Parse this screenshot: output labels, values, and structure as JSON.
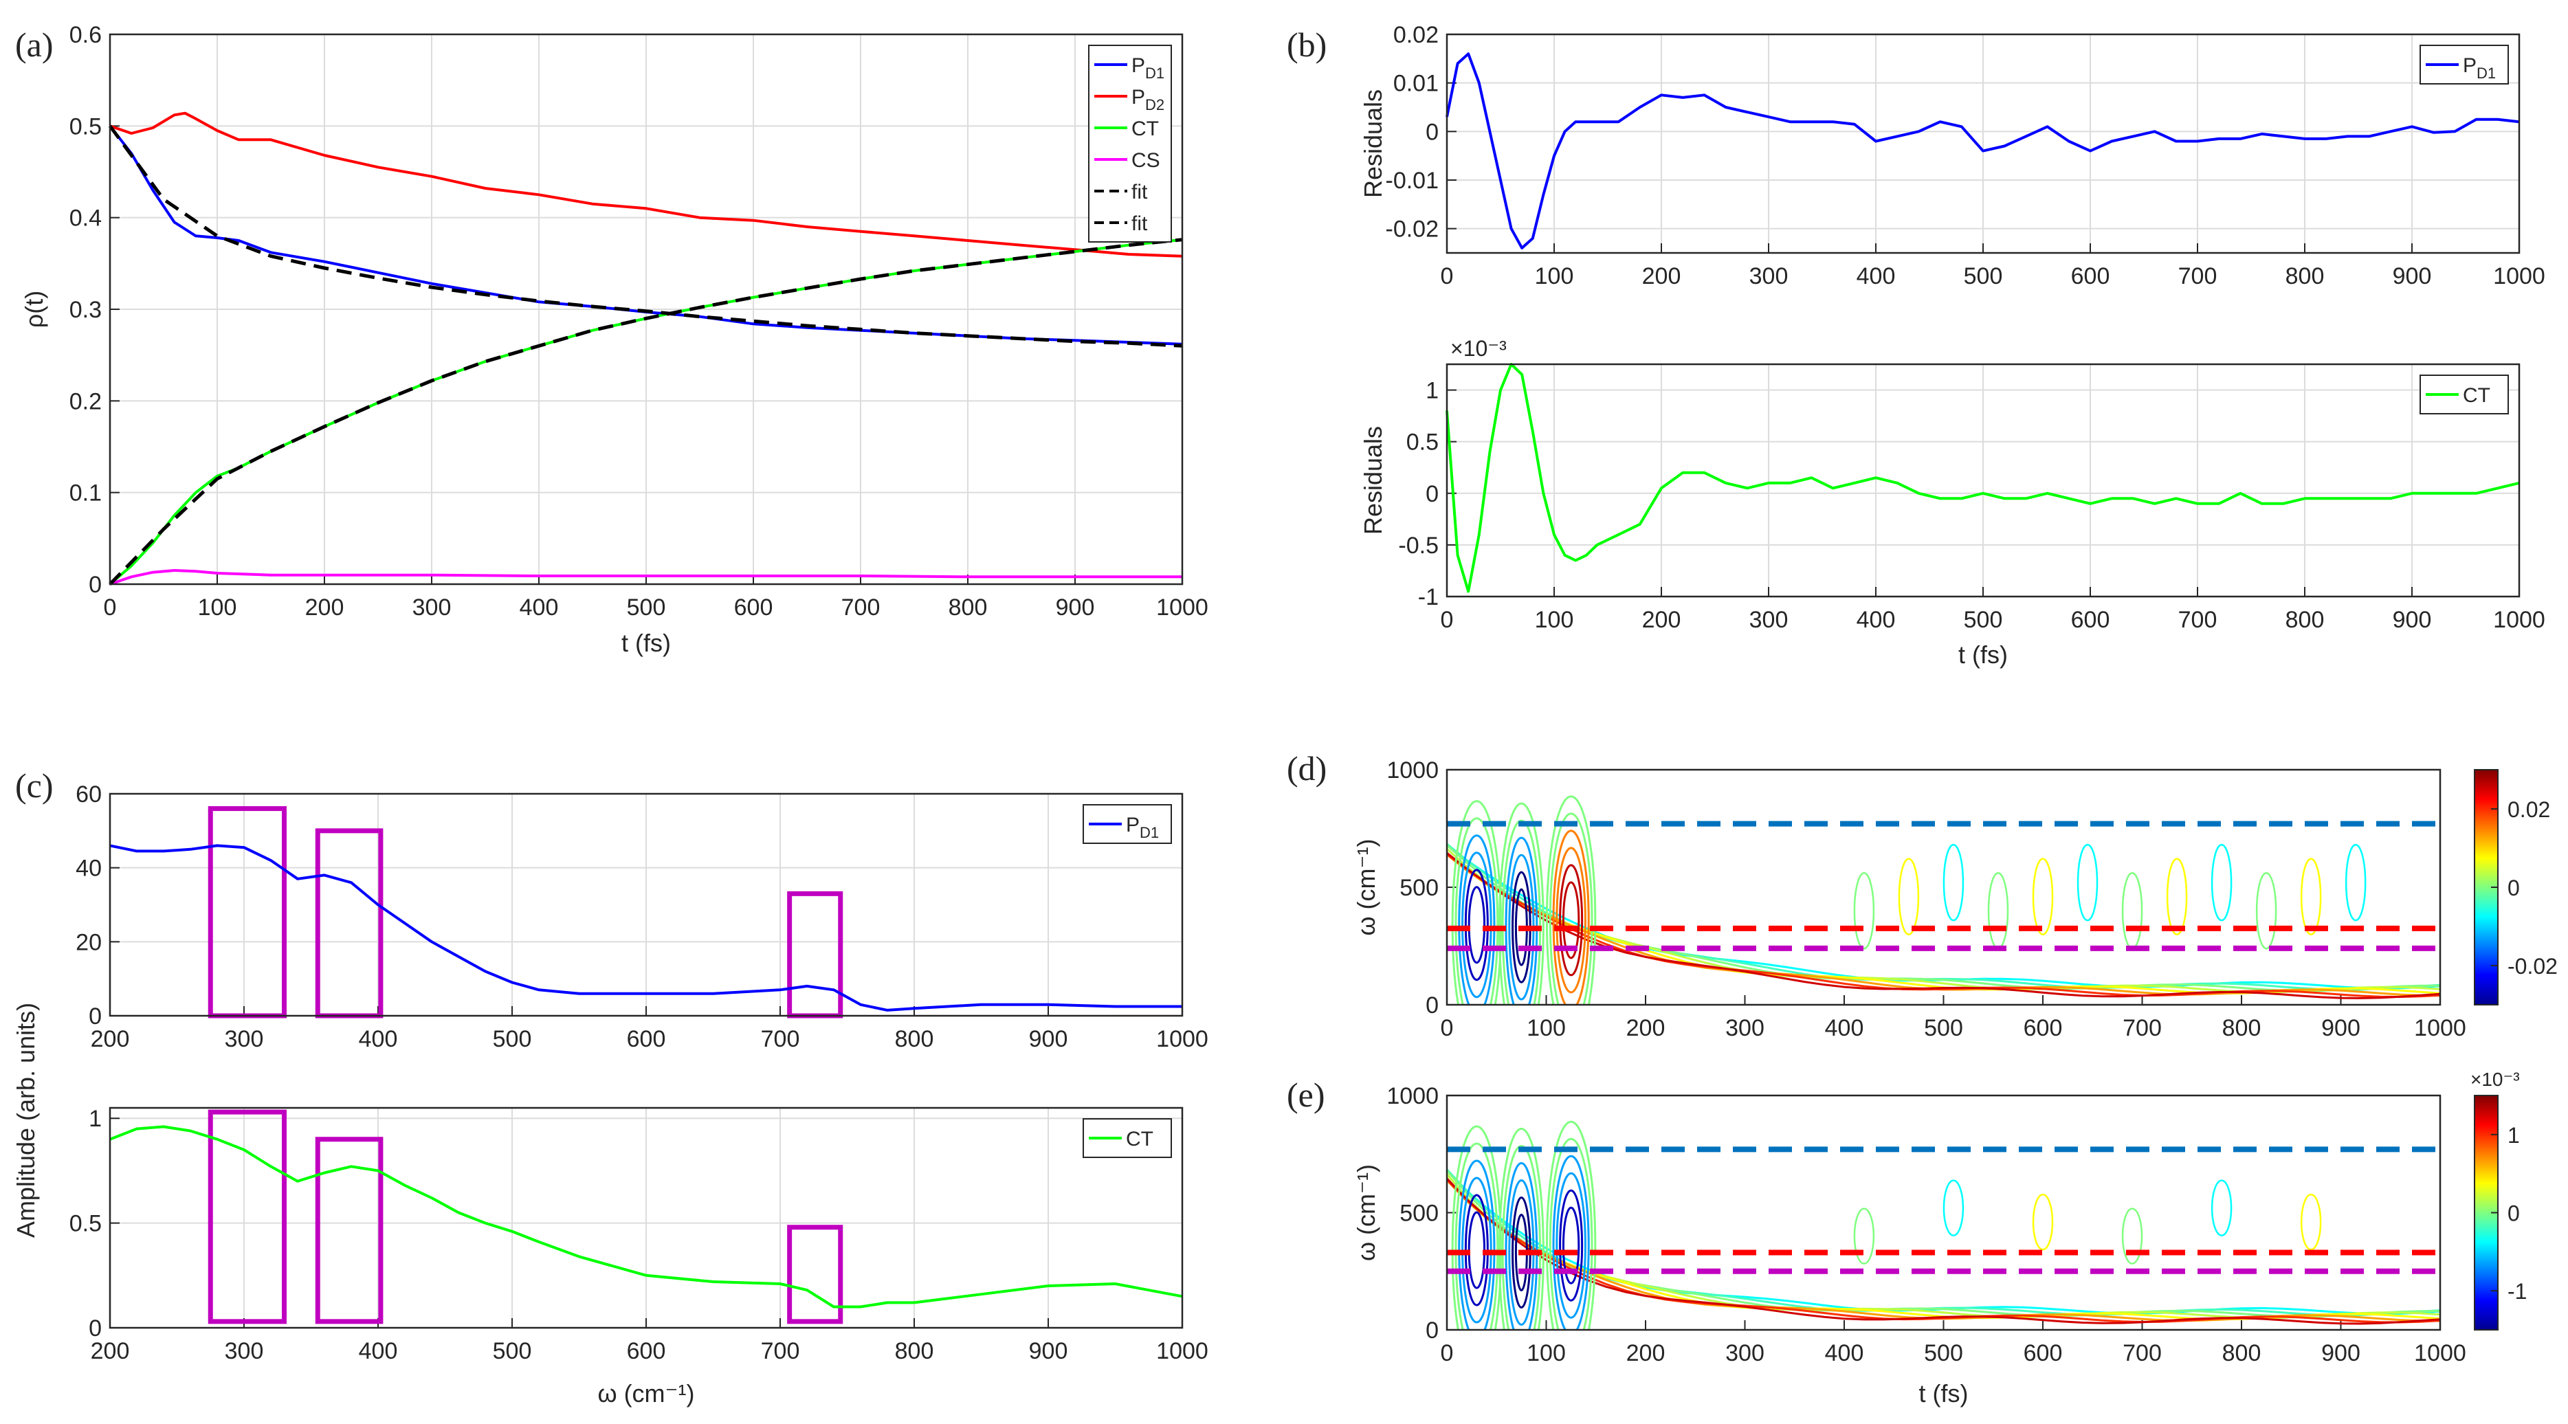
{
  "figure": {
    "panel_labels": [
      "(a)",
      "(b)",
      "(c)",
      "(d)",
      "(e)"
    ]
  },
  "colors": {
    "blue": "#0000ff",
    "red": "#ff0000",
    "green": "#00ff00",
    "magenta": "#ff00ff",
    "fit": "#000000",
    "box": "#c000c0",
    "dash_blue": "#0072bd",
    "dash_red": "#ff0000",
    "dash_magenta": "#c000c0"
  },
  "chart_data": [
    {
      "id": "a",
      "type": "line",
      "xlabel": "t (fs)",
      "ylabel": "ρ(t)",
      "xlim": [
        0,
        1000
      ],
      "ylim": [
        0,
        0.6
      ],
      "xticks": [
        "0",
        "100",
        "200",
        "300",
        "400",
        "500",
        "600",
        "700",
        "800",
        "900",
        "1000"
      ],
      "yticks": [
        "0",
        "0.1",
        "0.2",
        "0.3",
        "0.4",
        "0.5",
        "0.6"
      ],
      "grid": true,
      "legend": "top-right",
      "series": [
        {
          "name": "P",
          "sub": "D1",
          "color": "blue",
          "style": "solid",
          "x": [
            0,
            20,
            40,
            60,
            80,
            100,
            120,
            150,
            200,
            250,
            300,
            350,
            400,
            450,
            500,
            550,
            600,
            650,
            700,
            750,
            800,
            850,
            900,
            950,
            1000
          ],
          "y": [
            0.5,
            0.47,
            0.43,
            0.395,
            0.38,
            0.378,
            0.375,
            0.362,
            0.352,
            0.34,
            0.328,
            0.318,
            0.308,
            0.303,
            0.297,
            0.292,
            0.284,
            0.28,
            0.277,
            0.274,
            0.271,
            0.268,
            0.266,
            0.264,
            0.262
          ]
        },
        {
          "name": "P",
          "sub": "D2",
          "color": "red",
          "style": "solid",
          "x": [
            0,
            20,
            40,
            60,
            70,
            80,
            100,
            120,
            150,
            200,
            250,
            300,
            350,
            400,
            450,
            500,
            550,
            600,
            650,
            700,
            750,
            800,
            850,
            900,
            950,
            1000
          ],
          "y": [
            0.5,
            0.492,
            0.498,
            0.512,
            0.514,
            0.508,
            0.495,
            0.485,
            0.485,
            0.468,
            0.455,
            0.445,
            0.432,
            0.425,
            0.415,
            0.41,
            0.4,
            0.397,
            0.39,
            0.385,
            0.38,
            0.375,
            0.37,
            0.365,
            0.36,
            0.358
          ]
        },
        {
          "name": "CT",
          "color": "green",
          "style": "solid",
          "x": [
            0,
            20,
            40,
            60,
            80,
            100,
            120,
            150,
            200,
            250,
            300,
            350,
            400,
            450,
            500,
            550,
            600,
            650,
            700,
            750,
            800,
            850,
            900,
            950,
            1000
          ],
          "y": [
            0.0,
            0.02,
            0.045,
            0.075,
            0.1,
            0.118,
            0.127,
            0.145,
            0.172,
            0.198,
            0.222,
            0.243,
            0.26,
            0.277,
            0.29,
            0.302,
            0.313,
            0.323,
            0.333,
            0.342,
            0.349,
            0.356,
            0.363,
            0.37,
            0.376
          ]
        },
        {
          "name": "CS",
          "color": "magenta",
          "style": "solid",
          "x": [
            0,
            20,
            40,
            60,
            80,
            100,
            150,
            200,
            300,
            400,
            500,
            600,
            700,
            800,
            900,
            1000
          ],
          "y": [
            0.0,
            0.008,
            0.013,
            0.015,
            0.014,
            0.012,
            0.01,
            0.01,
            0.01,
            0.009,
            0.009,
            0.009,
            0.009,
            0.008,
            0.008,
            0.008
          ]
        },
        {
          "name": "fit",
          "color": "fit",
          "style": "dashed",
          "x": [
            0,
            50,
            100,
            150,
            200,
            250,
            300,
            350,
            400,
            450,
            500,
            550,
            600,
            650,
            700,
            750,
            800,
            850,
            900,
            950,
            1000
          ],
          "y": [
            0.5,
            0.42,
            0.38,
            0.358,
            0.345,
            0.334,
            0.324,
            0.316,
            0.309,
            0.303,
            0.298,
            0.292,
            0.287,
            0.282,
            0.278,
            0.274,
            0.271,
            0.268,
            0.265,
            0.263,
            0.26
          ]
        },
        {
          "name": "fit",
          "color": "fit",
          "style": "dashed",
          "x": [
            0,
            50,
            100,
            150,
            200,
            250,
            300,
            350,
            400,
            450,
            500,
            550,
            600,
            650,
            700,
            750,
            800,
            850,
            900,
            950,
            1000
          ],
          "y": [
            0.0,
            0.06,
            0.115,
            0.145,
            0.172,
            0.198,
            0.222,
            0.243,
            0.26,
            0.277,
            0.29,
            0.302,
            0.313,
            0.323,
            0.333,
            0.342,
            0.349,
            0.356,
            0.363,
            0.37,
            0.376
          ]
        }
      ]
    },
    {
      "id": "b1",
      "type": "line",
      "xlabel": "",
      "ylabel": "Residuals",
      "xlim": [
        0,
        1000
      ],
      "ylim": [
        -0.025,
        0.02
      ],
      "xticks": [
        "0",
        "100",
        "200",
        "300",
        "400",
        "500",
        "600",
        "700",
        "800",
        "900",
        "1000"
      ],
      "yticks": [
        "-0.02",
        "-0.01",
        "0",
        "0.01",
        "0.02"
      ],
      "ytick_values": [
        -0.02,
        -0.01,
        0,
        0.01,
        0.02
      ],
      "grid": true,
      "legend": "top-right",
      "series": [
        {
          "name": "P",
          "sub": "D1",
          "color": "blue",
          "x": [
            0,
            10,
            20,
            30,
            40,
            50,
            60,
            70,
            80,
            90,
            100,
            110,
            120,
            140,
            160,
            180,
            200,
            220,
            240,
            260,
            280,
            300,
            320,
            340,
            360,
            380,
            400,
            420,
            440,
            460,
            480,
            500,
            520,
            540,
            560,
            580,
            600,
            620,
            640,
            660,
            680,
            700,
            720,
            740,
            760,
            780,
            800,
            820,
            840,
            860,
            880,
            900,
            920,
            940,
            960,
            980,
            1000
          ],
          "y": [
            0.003,
            0.014,
            0.016,
            0.01,
            0.0,
            -0.01,
            -0.02,
            -0.024,
            -0.022,
            -0.013,
            -0.005,
            0.0,
            0.002,
            0.002,
            0.002,
            0.005,
            0.0075,
            0.007,
            0.0075,
            0.005,
            0.004,
            0.003,
            0.002,
            0.002,
            0.002,
            0.0015,
            -0.002,
            -0.001,
            0.0,
            0.002,
            0.001,
            -0.004,
            -0.003,
            -0.001,
            0.001,
            -0.002,
            -0.004,
            -0.002,
            -0.001,
            -0.0,
            -0.002,
            -0.002,
            -0.0015,
            -0.0015,
            -0.0005,
            -0.001,
            -0.0015,
            -0.0015,
            -0.001,
            -0.001,
            0.0,
            0.001,
            -0.0002,
            0.0,
            0.0025,
            0.0025,
            0.002
          ]
        }
      ]
    },
    {
      "id": "b2",
      "type": "line",
      "xlabel": "t (fs)",
      "ylabel": "Residuals",
      "exponent_label": "×10⁻³",
      "xlim": [
        0,
        1000
      ],
      "ylim": [
        -1,
        1.25
      ],
      "xticks": [
        "0",
        "100",
        "200",
        "300",
        "400",
        "500",
        "600",
        "700",
        "800",
        "900",
        "1000"
      ],
      "yticks": [
        "-1",
        "-0.5",
        "0",
        "0.5",
        "1"
      ],
      "ytick_values": [
        -1,
        -0.5,
        0,
        0.5,
        1
      ],
      "grid": true,
      "legend": "top-right",
      "series": [
        {
          "name": "CT",
          "color": "green",
          "x": [
            0,
            10,
            20,
            30,
            40,
            50,
            60,
            70,
            80,
            90,
            100,
            110,
            120,
            130,
            140,
            160,
            180,
            200,
            220,
            240,
            260,
            280,
            300,
            320,
            340,
            360,
            380,
            400,
            420,
            440,
            460,
            480,
            500,
            520,
            540,
            560,
            580,
            600,
            620,
            640,
            660,
            680,
            700,
            720,
            740,
            760,
            780,
            800,
            820,
            840,
            860,
            880,
            900,
            920,
            940,
            960,
            980,
            1000
          ],
          "y": [
            0.8,
            -0.6,
            -0.95,
            -0.4,
            0.4,
            1.0,
            1.25,
            1.15,
            0.6,
            0.0,
            -0.4,
            -0.6,
            -0.65,
            -0.6,
            -0.5,
            -0.4,
            -0.3,
            0.05,
            0.2,
            0.2,
            0.1,
            0.05,
            0.1,
            0.1,
            0.15,
            0.05,
            0.1,
            0.15,
            0.1,
            0.0,
            -0.05,
            -0.05,
            0.0,
            -0.05,
            -0.05,
            0.0,
            -0.05,
            -0.1,
            -0.05,
            -0.05,
            -0.1,
            -0.05,
            -0.1,
            -0.1,
            0.0,
            -0.1,
            -0.1,
            -0.05,
            -0.05,
            -0.05,
            -0.05,
            -0.05,
            0.0,
            0.0,
            0.0,
            0.0,
            0.05,
            0.1
          ]
        }
      ]
    },
    {
      "id": "c1",
      "type": "line",
      "xlabel": "",
      "ylabel": "Amplitude (arb. units)",
      "xlim": [
        200,
        1000
      ],
      "ylim": [
        0,
        60
      ],
      "xticks": [
        "200",
        "300",
        "400",
        "500",
        "600",
        "700",
        "800",
        "900",
        "1000"
      ],
      "yticks": [
        "0",
        "20",
        "40",
        "60"
      ],
      "ytick_values": [
        0,
        20,
        40,
        60
      ],
      "grid": true,
      "legend": "top-right",
      "boxes": [
        [
          275,
          330,
          0,
          56
        ],
        [
          355,
          402,
          0,
          50
        ],
        [
          707,
          745,
          0,
          33
        ]
      ],
      "series": [
        {
          "name": "P",
          "sub": "D1",
          "color": "blue",
          "x": [
            200,
            220,
            240,
            260,
            280,
            300,
            320,
            340,
            360,
            380,
            400,
            420,
            440,
            460,
            480,
            500,
            520,
            550,
            600,
            650,
            700,
            720,
            740,
            760,
            780,
            800,
            850,
            900,
            950,
            1000
          ],
          "y": [
            46,
            44.5,
            44.5,
            45,
            46,
            45.5,
            42,
            37,
            38,
            36,
            30,
            25,
            20,
            16,
            12,
            9,
            7,
            6,
            6,
            6,
            7,
            8,
            7,
            3,
            1.5,
            2,
            3,
            3,
            2.5,
            2.5
          ]
        }
      ]
    },
    {
      "id": "c2",
      "type": "line",
      "xlabel": "ω (cm⁻¹)",
      "ylabel": "",
      "xlim": [
        200,
        1000
      ],
      "ylim": [
        0,
        1.05
      ],
      "xticks": [
        "200",
        "300",
        "400",
        "500",
        "600",
        "700",
        "800",
        "900",
        "1000"
      ],
      "yticks": [
        "0",
        "0.5",
        "1"
      ],
      "ytick_values": [
        0,
        0.5,
        1
      ],
      "grid": true,
      "legend": "top-right",
      "boxes": [
        [
          275,
          330,
          0.03,
          1.03
        ],
        [
          355,
          402,
          0.03,
          0.9
        ],
        [
          707,
          745,
          0.03,
          0.48
        ]
      ],
      "series": [
        {
          "name": "CT",
          "color": "green",
          "x": [
            200,
            220,
            240,
            260,
            280,
            300,
            320,
            340,
            360,
            380,
            400,
            420,
            440,
            460,
            480,
            500,
            520,
            550,
            600,
            650,
            700,
            720,
            740,
            760,
            780,
            800,
            850,
            900,
            950,
            1000
          ],
          "y": [
            0.9,
            0.95,
            0.96,
            0.94,
            0.9,
            0.85,
            0.77,
            0.7,
            0.74,
            0.77,
            0.75,
            0.68,
            0.62,
            0.55,
            0.5,
            0.46,
            0.41,
            0.34,
            0.25,
            0.22,
            0.21,
            0.18,
            0.1,
            0.1,
            0.12,
            0.12,
            0.16,
            0.2,
            0.21,
            0.15
          ]
        }
      ]
    },
    {
      "id": "d",
      "type": "heatmap",
      "xlabel": "",
      "ylabel": "ω (cm⁻¹)",
      "xlim": [
        0,
        1000
      ],
      "ylim": [
        0,
        1000
      ],
      "xticks": [
        "0",
        "100",
        "200",
        "300",
        "400",
        "500",
        "600",
        "700",
        "800",
        "900",
        "1000"
      ],
      "yticks": [
        "0",
        "500",
        "1000"
      ],
      "ytick_values": [
        0,
        500,
        1000
      ],
      "colorbar": {
        "ticks": [
          "0.02",
          "0",
          "-0.02"
        ],
        "tick_values": [
          0.02,
          0,
          -0.02
        ],
        "range": [
          -0.03,
          0.03
        ]
      },
      "dashed_lines": [
        {
          "y": 770,
          "color": "dash_blue"
        },
        {
          "y": 325,
          "color": "dash_red"
        },
        {
          "y": 240,
          "color": "dash_magenta"
        }
      ]
    },
    {
      "id": "e",
      "type": "heatmap",
      "xlabel": "t (fs)",
      "ylabel": "ω (cm⁻¹)",
      "xlim": [
        0,
        1000
      ],
      "ylim": [
        0,
        1000
      ],
      "xticks": [
        "0",
        "100",
        "200",
        "300",
        "400",
        "500",
        "600",
        "700",
        "800",
        "900",
        "1000"
      ],
      "yticks": [
        "0",
        "500",
        "1000"
      ],
      "ytick_values": [
        0,
        500,
        1000
      ],
      "colorbar": {
        "ticks": [
          "1",
          "0",
          "-1"
        ],
        "tick_values": [
          1,
          0,
          -1
        ],
        "range": [
          -1.5,
          1.5
        ],
        "exponent_label": "×10⁻³"
      },
      "dashed_lines": [
        {
          "y": 770,
          "color": "dash_blue"
        },
        {
          "y": 330,
          "color": "dash_red"
        },
        {
          "y": 250,
          "color": "dash_magenta"
        }
      ]
    }
  ]
}
